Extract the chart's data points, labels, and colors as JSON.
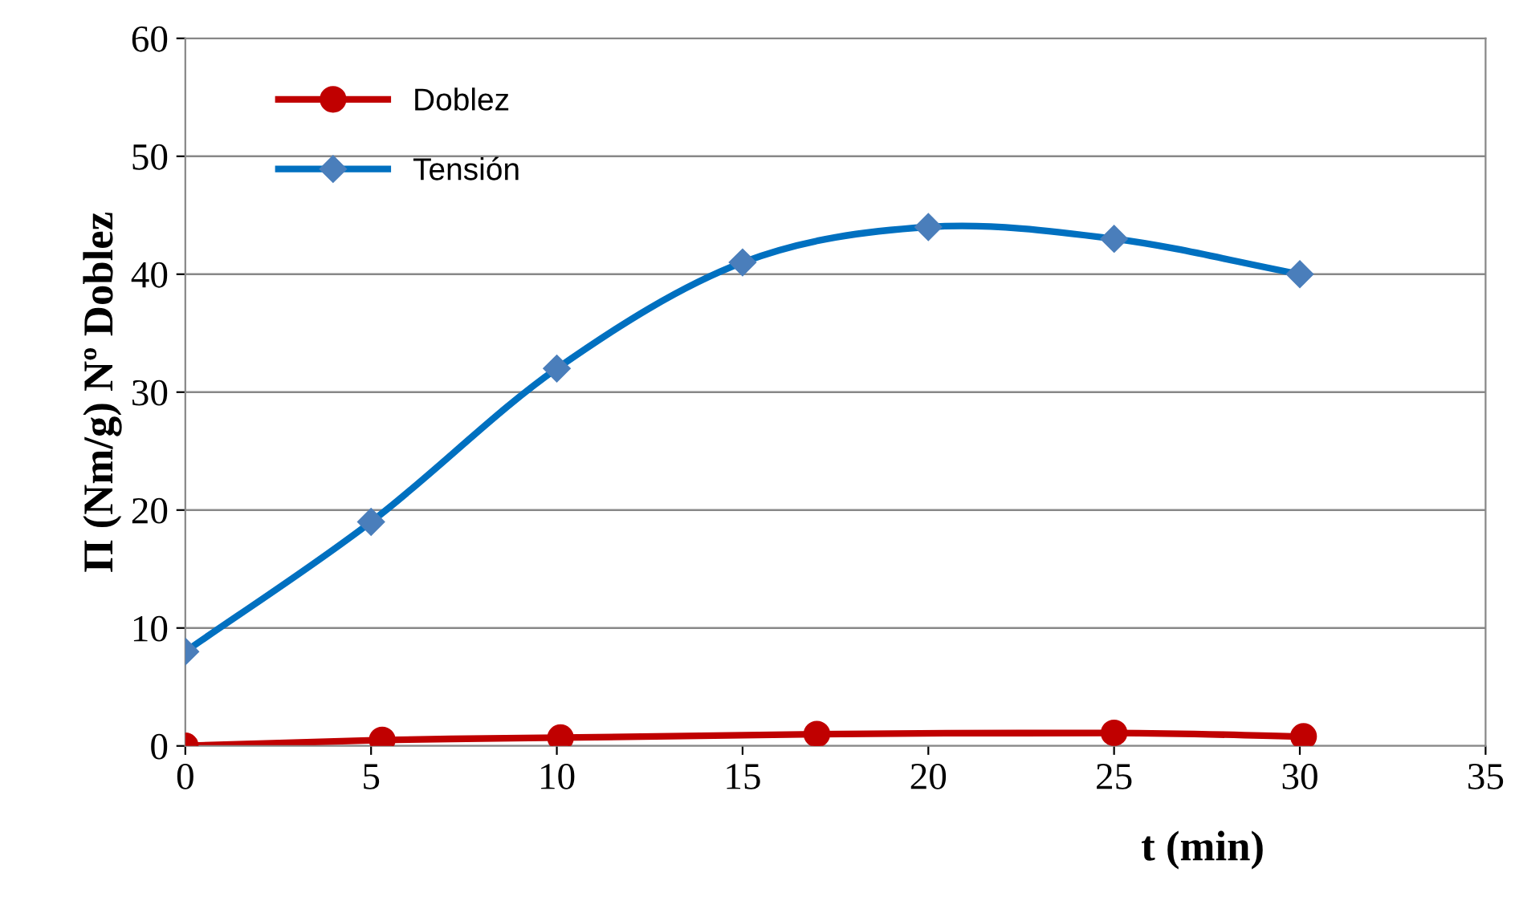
{
  "chart_data": {
    "type": "line",
    "xlabel": "t (min)",
    "ylabel": "Π (Nm/g) Nº Doblez",
    "xlim": [
      0,
      35
    ],
    "xticks": [
      0,
      5,
      10,
      15,
      20,
      25,
      30,
      35
    ],
    "ylim": [
      0,
      60
    ],
    "yticks": [
      0,
      10,
      20,
      30,
      40,
      50,
      60
    ],
    "grid": "y",
    "legend": "top left",
    "line_style": "solid",
    "series": [
      {
        "name": "Doblez",
        "color": "#c00000",
        "marker": "circle",
        "x": [
          0,
          5.3,
          10.1,
          17.0,
          25.0,
          30.1
        ],
        "values": [
          0,
          0.5,
          0.7,
          1.0,
          1.1,
          0.8
        ]
      },
      {
        "name": "Tensión",
        "color": "#0070c0",
        "marker": "diamond",
        "x": [
          0,
          5,
          10,
          15,
          20,
          25,
          30
        ],
        "values": [
          8,
          19,
          32,
          41,
          44,
          43,
          40
        ]
      }
    ]
  }
}
